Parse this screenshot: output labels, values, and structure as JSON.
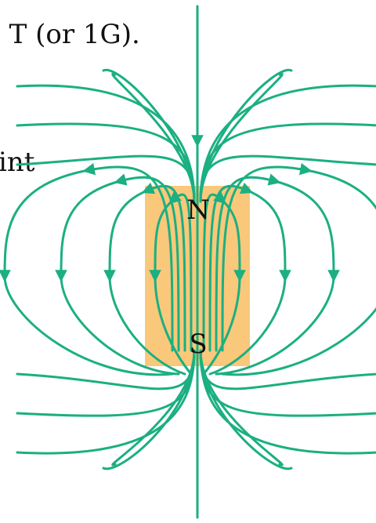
{
  "text_fragments": {
    "top": "· T (or 1G).",
    "middle": "int"
  },
  "magnet": {
    "north_label": "N",
    "south_label": "S",
    "color": "#F9C87A"
  },
  "field_line_color": "#1BAF82"
}
